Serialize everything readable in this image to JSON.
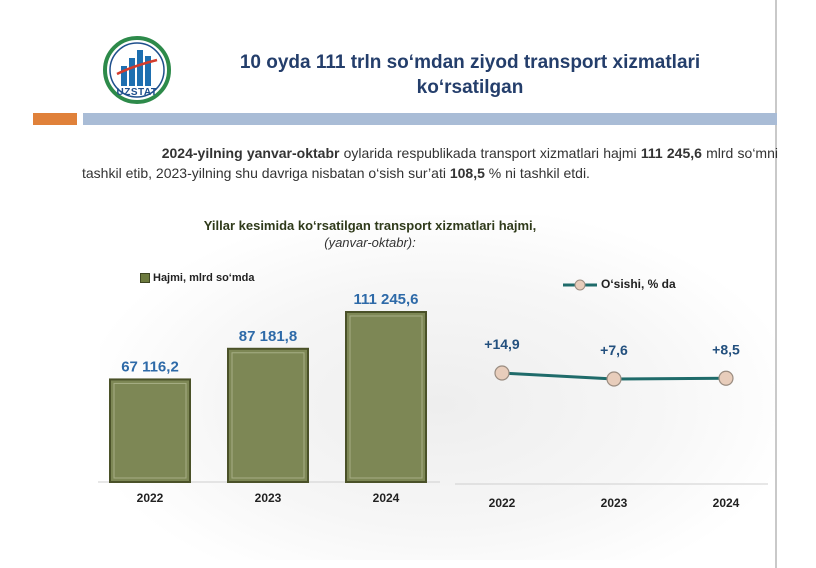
{
  "header": {
    "title_line1": "10 oyda 111 trln so‘mdan ziyod transport xizmatlari",
    "title_line2": "ko‘rsatilgan",
    "logo_text": "UZSTAT"
  },
  "intro": {
    "period": "2024-yilning yanvar-oktabr",
    "text1": " oylarida respublikada transport xizmatlari hajmi ",
    "volume": "111 245,6",
    "text2": " mlrd so‘mni tashkil etib, 2023-yilning shu davriga nisbatan o‘sish sur’ati ",
    "growth": "108,5",
    "text3": " % ni tashkil etdi."
  },
  "subtitle": {
    "line1": "Yillar kesimida ko‘rsatilgan transport xizmatlari hajmi,",
    "line2": "(yanvar-oktabr):"
  },
  "colors": {
    "bar_fill": "#7d8755",
    "bar_stroke": "#4a5128",
    "line": "#1f6b6a",
    "marker": "#e8cdbb",
    "value_label": "#2e6aa8",
    "growth_label": "#23507e"
  },
  "chart_data": [
    {
      "type": "bar",
      "legend": "Hajmi,  mlrd so‘mda",
      "categories": [
        "2022",
        "2023",
        "2024"
      ],
      "values": [
        67116.2,
        87181.8,
        111245.6
      ],
      "labels": [
        "67 116,2",
        "87 181,8",
        "111 245,6"
      ]
    },
    {
      "type": "line",
      "legend": "O‘sishi,  % da",
      "categories": [
        "2022",
        "2023",
        "2024"
      ],
      "values": [
        14.9,
        7.6,
        8.5
      ],
      "labels": [
        "+14,9",
        "+7,6",
        "+8,5"
      ]
    }
  ]
}
